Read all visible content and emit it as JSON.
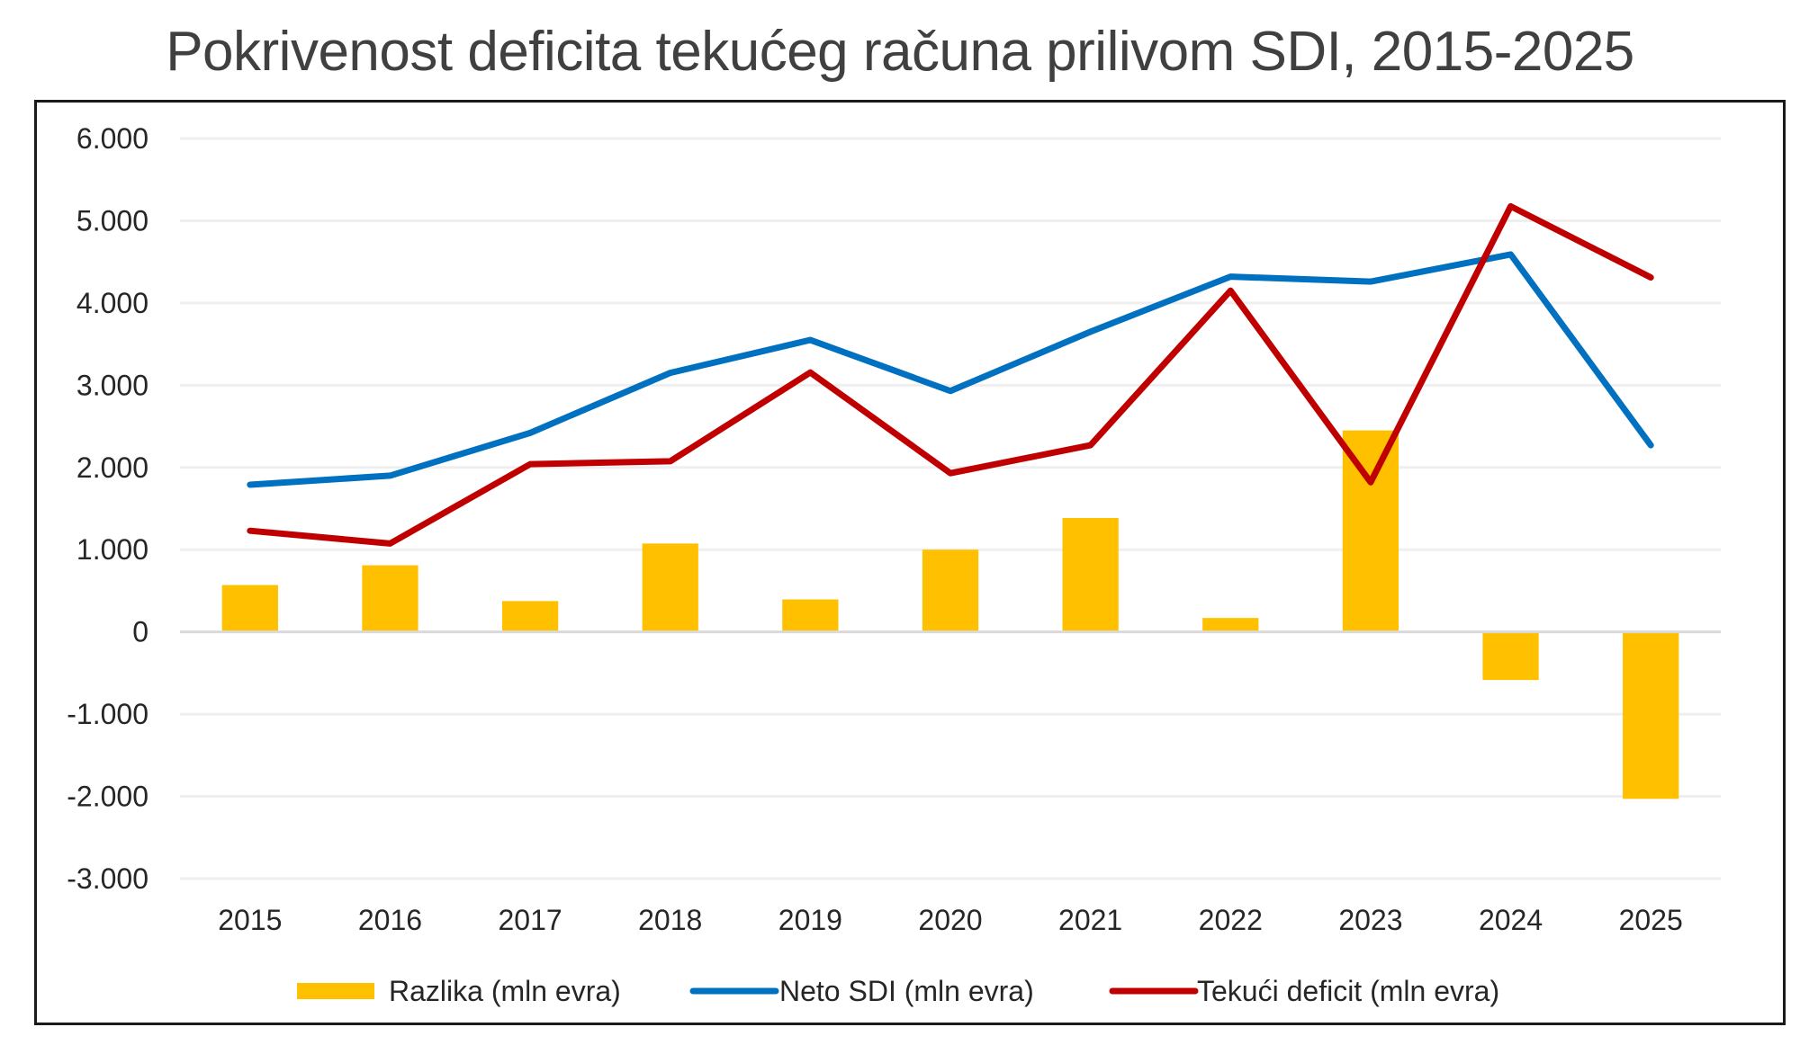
{
  "chart_data": {
    "type": "bar+line",
    "title": "Pokrivenost deficita tekućeg računa prilivom SDI, 2015-2025",
    "xlabel": "",
    "ylabel": "",
    "categories": [
      "2015",
      "2016",
      "2017",
      "2018",
      "2019",
      "2020",
      "2021",
      "2022",
      "2023",
      "2024",
      "2025"
    ],
    "ylim": [
      -3000,
      6000
    ],
    "yticks": [
      6000,
      5000,
      4000,
      3000,
      2000,
      1000,
      0,
      -1000,
      -2000,
      -3000
    ],
    "ytick_labels": [
      "6.000",
      "5.000",
      "4.000",
      "3.000",
      "2.000",
      "1.000",
      "0",
      "-1.000",
      "-2.000",
      "-3.000"
    ],
    "grid": true,
    "legend_position": "bottom",
    "series": [
      {
        "name": "Razlika (mln evra)",
        "kind": "bar",
        "color": "#FFC000",
        "values": [
          570,
          810,
          375,
          1075,
          395,
          1000,
          1385,
          170,
          2450,
          -585,
          -2030
        ]
      },
      {
        "name": "Neto SDI (mln evra)",
        "kind": "line",
        "color": "#0070C0",
        "values": [
          1790,
          1900,
          2420,
          3150,
          3550,
          2930,
          3650,
          4320,
          4260,
          4590,
          2270
        ]
      },
      {
        "name": "Tekući deficit (mln evra)",
        "kind": "line",
        "color": "#C00000",
        "values": [
          1230,
          1075,
          2040,
          2075,
          3155,
          1930,
          2270,
          4150,
          1820,
          5175,
          4310
        ]
      }
    ]
  }
}
